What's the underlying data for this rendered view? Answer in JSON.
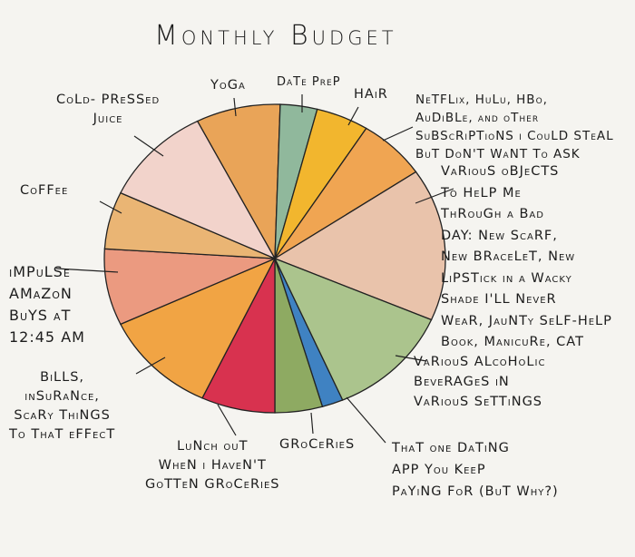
{
  "chart_data": {
    "type": "pie",
    "title": "Monthly Budget",
    "unit": "percent (estimated)",
    "start_angle_deg": -27,
    "slices": [
      {
        "label": "Yoga",
        "value": 8,
        "color": "#e9a458"
      },
      {
        "label": "Date Prep",
        "value": 3.5,
        "color": "#90b89c"
      },
      {
        "label": "Hair",
        "value": 5,
        "color": "#f2b62e"
      },
      {
        "label": "Netflix, Hulu, HBO, Audible, and other subscriptions I could steal but don't want to ask",
        "value": 6.5,
        "color": "#f0a552"
      },
      {
        "label": "Various objects to help me through a bad day: new scarf, new bracelet, new lipstick in a wacky shade I'll never wear, jaunty self-help book, manicure, cat",
        "value": 16,
        "color": "#e9c3ab"
      },
      {
        "label": "Various alcoholic beverages in various settings",
        "value": 12,
        "color": "#abc48d"
      },
      {
        "label": "That one dating app you keep paying for (but why?)",
        "value": 2,
        "color": "#3f82c2"
      },
      {
        "label": "Groceries",
        "value": 4.5,
        "color": "#8eaa62"
      },
      {
        "label": "Lunch out when I haven't gotten groceries",
        "value": 7,
        "color": "#d8324f"
      },
      {
        "label": "Bills, insurance, scary things to that effect",
        "value": 11,
        "color": "#f1a444"
      },
      {
        "label": "Impulse Amazon buys at 12:45 AM",
        "value": 8,
        "color": "#eb9a80"
      },
      {
        "label": "Coffee",
        "value": 6,
        "color": "#eab574"
      },
      {
        "label": "Cold-pressed juice",
        "value": 10.5,
        "color": "#f2d3cb"
      }
    ]
  },
  "labels": {
    "yoga": "YoGa",
    "date_prep": "DaTe PreP",
    "hair": "HAiR",
    "netflix": "NeTFLix, HuLu,  HBo,\nAuDiBLe, and oTher\nSuBScRiPTioNS i CouLD STeAL\nBuT DoN'T WaNT To ASK",
    "objects": "VaRiouS oBJeCTS\nTo HeLP Me\nThRouGh  a  Bad\nDAY:  New  ScaRF,\nNew  BRaceLeT,  New\nLiPSTick  in a  Wacky\nShade  I'LL  NeveR\nWeaR,  JauNTy SeLF-HeLP\nBook,  ManicuRe,  CAT",
    "alcohol": "VaRiouS  ALcoHoLic\nBeveRAGeS  iN\nVaRiouS  SeTTiNGS",
    "dating": "ThaT  one  DaTiNG\nAPP  You  KeeP\nPaYiNG FoR  (BuT Why?)",
    "groceries": "GRoCeRieS",
    "lunch": "LuNch  ouT\nWheN  i  HaveN'T\nGoTTeN  GRoCeRieS",
    "bills": "BiLLS,\ninSuRaNce,\nScaRy  ThiNGS\nTo  ThaT  eFFecT",
    "impulse": "iMPuLSe\nAMaZoN\nBuYS  aT\n12:45  AM",
    "coffee": "CoFFee",
    "juice": "CoLd- PReSSed\nJuice"
  }
}
